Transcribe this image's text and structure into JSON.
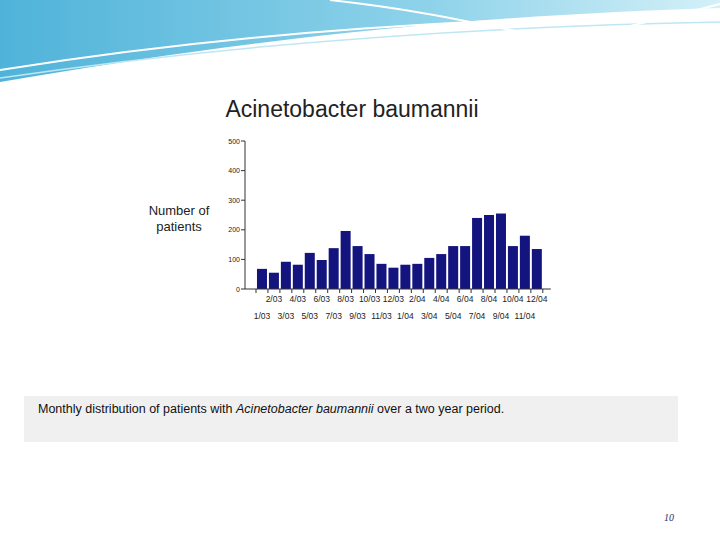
{
  "chart_data": {
    "type": "bar",
    "title": "Acinetobacter baumannii",
    "y_label": "Number of patients",
    "categories": [
      "1/03",
      "2/03",
      "3/03",
      "4/03",
      "5/03",
      "6/03",
      "7/03",
      "8/03",
      "9/03",
      "10/03",
      "11/03",
      "12/03",
      "1/04",
      "2/04",
      "3/04",
      "4/04",
      "5/04",
      "6/04",
      "7/04",
      "8/04",
      "9/04",
      "10/04",
      "11/04",
      "12/04"
    ],
    "values": [
      68,
      55,
      92,
      82,
      122,
      98,
      138,
      196,
      145,
      118,
      85,
      72,
      82,
      85,
      105,
      118,
      145,
      145,
      240,
      250,
      255,
      145,
      180,
      135
    ],
    "color": "#14147f",
    "ylim": [
      0,
      500
    ],
    "yticks": [
      0,
      100,
      200,
      300,
      400,
      500
    ],
    "grid": false
  },
  "caption": [
    {
      "text": "Monthly distribution of patients with ",
      "italic": false
    },
    {
      "text": "Acinetobacter baumannii",
      "italic": true
    },
    {
      "text": " over a two year period.",
      "italic": false
    }
  ],
  "page_number": "10"
}
